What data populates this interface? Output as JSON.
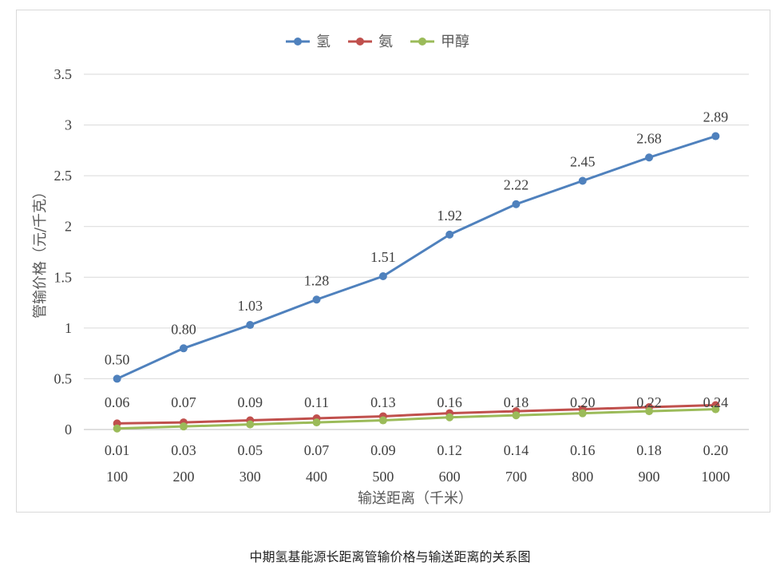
{
  "caption": "中期氢基能源长距离管输价格与输送距离的关系图",
  "chart_data": {
    "type": "line",
    "xlabel": "输送距离（千米）",
    "ylabel": "管输价格（元/千克）",
    "categories": [
      "100",
      "200",
      "300",
      "400",
      "500",
      "600",
      "700",
      "800",
      "900",
      "1000"
    ],
    "ylim": [
      0,
      3.5
    ],
    "yticks": [
      "0",
      "0.5",
      "1",
      "1.5",
      "2",
      "2.5",
      "3",
      "3.5"
    ],
    "grid": true,
    "legend_position": "top-center",
    "series": [
      {
        "name": "氢",
        "color": "#4f81bd",
        "values": [
          0.5,
          0.8,
          1.03,
          1.28,
          1.51,
          1.92,
          2.22,
          2.45,
          2.68,
          2.89
        ],
        "labels": [
          "0.50",
          "0.80",
          "1.03",
          "1.28",
          "1.51",
          "1.92",
          "2.22",
          "2.45",
          "2.68",
          "2.89"
        ],
        "label_position": "above"
      },
      {
        "name": "氨",
        "color": "#c0504d",
        "values": [
          0.06,
          0.07,
          0.09,
          0.11,
          0.13,
          0.16,
          0.18,
          0.2,
          0.22,
          0.24
        ],
        "labels": [
          "0.06",
          "0.07",
          "0.09",
          "0.11",
          "0.13",
          "0.16",
          "0.18",
          "0.20",
          "0.22",
          "0.24"
        ],
        "label_position": "above"
      },
      {
        "name": "甲醇",
        "color": "#9bbb59",
        "values": [
          0.01,
          0.03,
          0.05,
          0.07,
          0.09,
          0.12,
          0.14,
          0.16,
          0.18,
          0.2
        ],
        "labels": [
          "0.01",
          "0.03",
          "0.05",
          "0.07",
          "0.09",
          "0.12",
          "0.14",
          "0.16",
          "0.18",
          "0.20"
        ],
        "label_position": "below"
      }
    ]
  }
}
